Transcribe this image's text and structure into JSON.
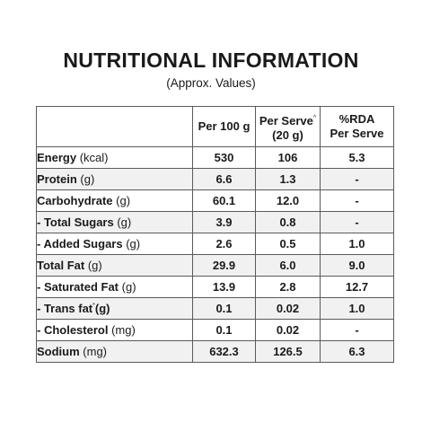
{
  "title": "NUTRITIONAL INFORMATION",
  "subtitle": "(Approx. Values)",
  "table": {
    "headers": {
      "col1": "",
      "col2": "Per 100 g",
      "col3_line1": "Per Serve",
      "col3_mark": "^",
      "col3_line2": "(20 g)",
      "col4_line1": "%RDA",
      "col4_line2": "Per Serve"
    },
    "rows": [
      {
        "name": "Energy",
        "unit": "(kcal)",
        "per100": "530",
        "perServe": "106",
        "rda": "5.3"
      },
      {
        "name": "Protein",
        "unit": "(g)",
        "per100": "6.6",
        "perServe": "1.3",
        "rda": "-"
      },
      {
        "name": "Carbohydrate",
        "unit": "(g)",
        "per100": "60.1",
        "perServe": "12.0",
        "rda": "-"
      },
      {
        "name": "- Total Sugars",
        "unit": "(g)",
        "per100": "3.9",
        "perServe": "0.8",
        "rda": "-"
      },
      {
        "name": "- Added Sugars",
        "unit": "(g)",
        "per100": "2.6",
        "perServe": "0.5",
        "rda": "1.0"
      },
      {
        "name": "Total Fat",
        "unit": "(g)",
        "per100": "29.9",
        "perServe": "6.0",
        "rda": "9.0"
      },
      {
        "name": "- Saturated Fat",
        "unit": "(g)",
        "per100": "13.9",
        "perServe": "2.8",
        "rda": "12.7"
      },
      {
        "name": "- Trans fat",
        "mark": "*",
        "unit": "(g)",
        "per100": "0.1",
        "perServe": "0.02",
        "rda": "1.0"
      },
      {
        "name": "- Cholesterol",
        "unit": "(mg)",
        "per100": "0.1",
        "perServe": "0.02",
        "rda": "-"
      },
      {
        "name": "Sodium",
        "unit": "(mg)",
        "per100": "632.3",
        "perServe": "126.5",
        "rda": "6.3"
      }
    ]
  },
  "colors": {
    "shade": "#f1f1f1",
    "border": "#5a5a5a",
    "text": "#1a1a1a"
  }
}
